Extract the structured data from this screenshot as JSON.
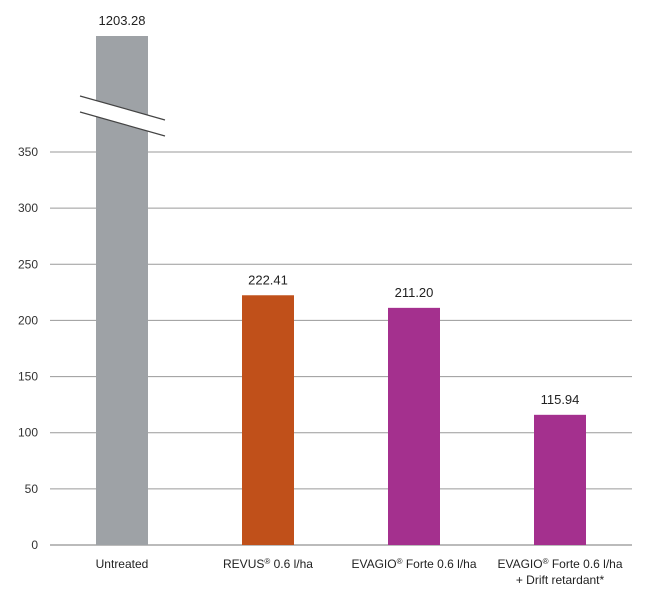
{
  "chart_data": {
    "type": "bar",
    "categories": [
      [
        "Untreated"
      ],
      [
        "REVUS® 0.6 l/ha"
      ],
      [
        "EVAGIO® Forte 0.6 l/ha"
      ],
      [
        "EVAGIO® Forte 0.6 l/ha",
        "+ Drift retardant*"
      ]
    ],
    "values": [
      1203.28,
      222.41,
      211.2,
      115.94
    ],
    "value_labels": [
      "1203.28",
      "222.41",
      "211.20",
      "115.94"
    ],
    "colors": [
      "#9ea2a6",
      "#c0501a",
      "#a4308e",
      "#a4308e"
    ],
    "yticks": [
      0,
      50,
      100,
      150,
      200,
      250,
      300,
      350
    ],
    "ylim": [
      0,
      350
    ],
    "axis_break": true,
    "grid": true,
    "title": "",
    "xlabel": "",
    "ylabel": ""
  }
}
